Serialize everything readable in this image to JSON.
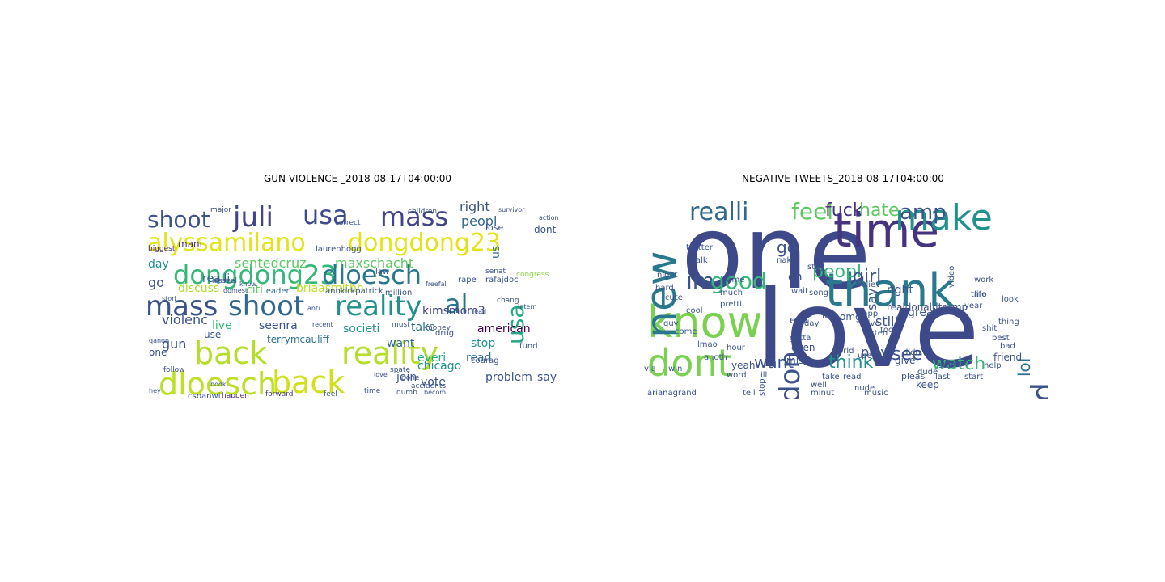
{
  "panels": [
    {
      "title": "GUN VIOLENCE _2018-08-17T04:00:00",
      "words": [
        {
          "text": "alyssamilano",
          "color": "#e2e418"
        },
        {
          "text": "dongdong23",
          "color": "#e2e418"
        },
        {
          "text": "dongdong23",
          "color": "#35b779"
        },
        {
          "text": "dloesch",
          "color": "#2a788e"
        },
        {
          "text": "mass",
          "color": "#3b528b"
        },
        {
          "text": "shoot",
          "color": "#31688e"
        },
        {
          "text": "reality",
          "color": "#21918c"
        },
        {
          "text": "al",
          "color": "#2c728e"
        },
        {
          "text": "usa",
          "color": "#22a884"
        },
        {
          "text": "back",
          "color": "#b5de2b"
        },
        {
          "text": "reality",
          "color": "#b5de2b"
        },
        {
          "text": "dloesch",
          "color": "#bddf26"
        },
        {
          "text": "back",
          "color": "#d0e11c"
        },
        {
          "text": "shoot",
          "color": "#3b528b"
        },
        {
          "text": "juli",
          "color": "#414487"
        },
        {
          "text": "usa",
          "color": "#3e4a89"
        },
        {
          "text": "mass",
          "color": "#414487"
        },
        {
          "text": "sentedcruz",
          "color": "#5ec962"
        },
        {
          "text": "maxschacht",
          "color": "#5ec962"
        },
        {
          "text": "right",
          "color": "#3b528b"
        },
        {
          "text": "peopl",
          "color": "#31688e"
        },
        {
          "text": "us",
          "color": "#2c728e"
        },
        {
          "text": "dont",
          "color": "#3b528b"
        },
        {
          "text": "mani",
          "color": "#472d7b"
        },
        {
          "text": "biggest",
          "color": "#482878"
        },
        {
          "text": "day",
          "color": "#21918c"
        },
        {
          "text": "go",
          "color": "#3b528b"
        },
        {
          "text": "realli",
          "color": "#31688e"
        },
        {
          "text": "discuss",
          "color": "#addc30"
        },
        {
          "text": "citi",
          "color": "#5ec962"
        },
        {
          "text": "briaasmithh",
          "color": "#bddf26"
        },
        {
          "text": "kimsmom3",
          "color": "#414487"
        },
        {
          "text": "violenc",
          "color": "#3b528b"
        },
        {
          "text": "live",
          "color": "#35b779"
        },
        {
          "text": "seenra",
          "color": "#3b528b"
        },
        {
          "text": "societi",
          "color": "#21918c"
        },
        {
          "text": "take",
          "color": "#2c728e"
        },
        {
          "text": "american",
          "color": "#440154"
        },
        {
          "text": "gun",
          "color": "#3b528b"
        },
        {
          "text": "use",
          "color": "#3b528b"
        },
        {
          "text": "terrymcauliff",
          "color": "#2c728e"
        },
        {
          "text": "want",
          "color": "#31688e"
        },
        {
          "text": "stop",
          "color": "#21918c"
        },
        {
          "text": "everi",
          "color": "#22a884"
        },
        {
          "text": "read",
          "color": "#31688e"
        },
        {
          "text": "chicago",
          "color": "#21918c"
        },
        {
          "text": "one",
          "color": "#3b528b"
        },
        {
          "text": "join",
          "color": "#3b528b"
        },
        {
          "text": "vote",
          "color": "#3b528b"
        },
        {
          "text": "problem",
          "color": "#3b528b"
        },
        {
          "text": "say",
          "color": "#3b528b"
        },
        {
          "text": "cspanwj",
          "color": "#3b528b"
        },
        {
          "text": "happen",
          "color": "#482878"
        },
        {
          "text": "forward",
          "color": "#443983"
        },
        {
          "text": "feel",
          "color": "#3b528b"
        },
        {
          "text": "lose",
          "color": "#3b528b"
        },
        {
          "text": "leader",
          "color": "#31688e"
        },
        {
          "text": "annkirkpatrick",
          "color": "#3b528b"
        },
        {
          "text": "million",
          "color": "#3b528b"
        },
        {
          "text": "laurenhogg",
          "color": "#3b528b"
        },
        {
          "text": "law",
          "color": "#3b528b"
        },
        {
          "text": "rape",
          "color": "#3b528b"
        },
        {
          "text": "rafajdoc",
          "color": "#3b528b"
        },
        {
          "text": "correct",
          "color": "#3b528b"
        },
        {
          "text": "major",
          "color": "#3b528b"
        },
        {
          "text": "congress",
          "color": "#8fd744"
        },
        {
          "text": "courag",
          "color": "#3b528b"
        },
        {
          "text": "chang",
          "color": "#3b528b"
        },
        {
          "text": "qanon",
          "color": "#3b528b"
        },
        {
          "text": "book",
          "color": "#3b528b"
        },
        {
          "text": "drug",
          "color": "#3b528b"
        },
        {
          "text": "fund",
          "color": "#3b528b"
        },
        {
          "text": "money",
          "color": "#3b528b"
        },
        {
          "text": "done",
          "color": "#3b528b"
        },
        {
          "text": "spate",
          "color": "#3b528b"
        },
        {
          "text": "dumb",
          "color": "#3b528b"
        },
        {
          "text": "must",
          "color": "#3b528b"
        },
        {
          "text": "slaughter",
          "color": "#8fd744"
        },
        {
          "text": "children",
          "color": "#3b528b"
        },
        {
          "text": "stori",
          "color": "#3b528b"
        },
        {
          "text": "less",
          "color": "#3b528b"
        },
        {
          "text": "real",
          "color": "#3b528b"
        },
        {
          "text": "senat",
          "color": "#3b528b"
        },
        {
          "text": "recent",
          "color": "#3b528b"
        },
        {
          "text": "anti",
          "color": "#3b528b"
        },
        {
          "text": "accidents",
          "color": "#3b528b"
        },
        {
          "text": "love",
          "color": "#3b528b"
        },
        {
          "text": "time",
          "color": "#3b528b"
        },
        {
          "text": "addict",
          "color": "#3b528b"
        },
        {
          "text": "becom",
          "color": "#3b528b"
        },
        {
          "text": "hey",
          "color": "#3b528b"
        },
        {
          "text": "follow",
          "color": "#3b528b"
        },
        {
          "text": "freefal",
          "color": "#3b528b"
        },
        {
          "text": "lead",
          "color": "#3b528b"
        },
        {
          "text": "survivor",
          "color": "#3b528b"
        },
        {
          "text": "action",
          "color": "#3b528b"
        },
        {
          "text": "know",
          "color": "#3b528b"
        },
        {
          "text": "domest",
          "color": "#3b528b"
        },
        {
          "text": "intern",
          "color": "#3b528b"
        },
        {
          "text": "survivor",
          "color": "#3b528b"
        }
      ]
    },
    {
      "title": "NEGATIVE TWEETS_2018-08-17T04:00:00",
      "words": [
        {
          "text": "one",
          "color": "#3e4989"
        },
        {
          "text": "love",
          "color": "#3e4989"
        },
        {
          "text": "time",
          "color": "#46337f"
        },
        {
          "text": "thank",
          "color": "#2a788e"
        },
        {
          "text": "know",
          "color": "#7ad151"
        },
        {
          "text": "dont",
          "color": "#7ad151"
        },
        {
          "text": "new",
          "color": "#2a788e"
        },
        {
          "text": "make",
          "color": "#21918c"
        },
        {
          "text": "realli",
          "color": "#31688e"
        },
        {
          "text": "feel",
          "color": "#5ec962"
        },
        {
          "text": "fuck",
          "color": "#46337f"
        },
        {
          "text": "hate",
          "color": "#5ec962"
        },
        {
          "text": "amp",
          "color": "#3b528b"
        },
        {
          "text": "need",
          "color": "#3b528b"
        },
        {
          "text": "im",
          "color": "#3b528b"
        },
        {
          "text": "good",
          "color": "#35b779"
        },
        {
          "text": "don",
          "color": "#3b528b"
        },
        {
          "text": "peopl",
          "color": "#35b779"
        },
        {
          "text": "girl",
          "color": "#3b528b"
        },
        {
          "text": "lol",
          "color": "#2c728e"
        },
        {
          "text": "watch",
          "color": "#35b779"
        },
        {
          "text": "see",
          "color": "#3b528b"
        },
        {
          "text": "think",
          "color": "#21918c"
        },
        {
          "text": "want",
          "color": "#3b528b"
        },
        {
          "text": "go",
          "color": "#3b528b"
        },
        {
          "text": "say",
          "color": "#3b528b"
        },
        {
          "text": "oh",
          "color": "#3b528b"
        },
        {
          "text": "play",
          "color": "#3b528b"
        },
        {
          "text": "still",
          "color": "#3b528b"
        },
        {
          "text": "right",
          "color": "#3b528b"
        },
        {
          "text": "look",
          "color": "#3b528b"
        },
        {
          "text": "work",
          "color": "#3b528b"
        },
        {
          "text": "game",
          "color": "#3b528b"
        },
        {
          "text": "much",
          "color": "#3b528b"
        },
        {
          "text": "pretti",
          "color": "#3b528b"
        },
        {
          "text": "friend",
          "color": "#3b528b"
        },
        {
          "text": "arianagrand",
          "color": "#3b528b"
        },
        {
          "text": "stop",
          "color": "#3b528b"
        },
        {
          "text": "yeah",
          "color": "#3b528b"
        },
        {
          "text": "miss",
          "color": "#3b528b"
        },
        {
          "text": "give",
          "color": "#3b528b"
        },
        {
          "text": "keep",
          "color": "#3b528b"
        },
        {
          "text": "pleas",
          "color": "#3b528b"
        },
        {
          "text": "believ",
          "color": "#3b528b"
        },
        {
          "text": "realdonaldtrump",
          "color": "#3b528b"
        },
        {
          "text": "happi",
          "color": "#3b528b"
        },
        {
          "text": "live",
          "color": "#3b528b"
        },
        {
          "text": "listen",
          "color": "#3b528b"
        },
        {
          "text": "free",
          "color": "#3b528b"
        },
        {
          "text": "end",
          "color": "#3b528b"
        },
        {
          "text": "even",
          "color": "#3b528b"
        },
        {
          "text": "omg",
          "color": "#3b528b"
        },
        {
          "text": "great",
          "color": "#3b528b"
        },
        {
          "text": "video",
          "color": "#3b528b"
        },
        {
          "text": "day",
          "color": "#3b528b"
        },
        {
          "text": "gotta",
          "color": "#3b528b"
        },
        {
          "text": "today",
          "color": "#3b528b"
        },
        {
          "text": "world",
          "color": "#3b528b"
        },
        {
          "text": "use",
          "color": "#3b528b"
        },
        {
          "text": "song",
          "color": "#3b528b"
        },
        {
          "text": "back",
          "color": "#3b528b"
        },
        {
          "text": "stan",
          "color": "#3b528b"
        },
        {
          "text": "bad",
          "color": "#3b528b"
        },
        {
          "text": "help",
          "color": "#3b528b"
        },
        {
          "text": "last",
          "color": "#3b528b"
        },
        {
          "text": "start",
          "color": "#3b528b"
        },
        {
          "text": "life",
          "color": "#3b528b"
        },
        {
          "text": "thing",
          "color": "#3b528b"
        },
        {
          "text": "best",
          "color": "#3b528b"
        },
        {
          "text": "tmo",
          "color": "#3b528b"
        },
        {
          "text": "year",
          "color": "#3b528b"
        },
        {
          "text": "shit",
          "color": "#3b528b"
        },
        {
          "text": "night",
          "color": "#3b528b"
        },
        {
          "text": "hard",
          "color": "#3b528b"
        },
        {
          "text": "cute",
          "color": "#3b528b"
        },
        {
          "text": "cool",
          "color": "#3b528b"
        },
        {
          "text": "guy",
          "color": "#3b528b"
        },
        {
          "text": "come",
          "color": "#3b528b"
        },
        {
          "text": "lmao",
          "color": "#3b528b"
        },
        {
          "text": "anoth",
          "color": "#3b528b"
        },
        {
          "text": "hour",
          "color": "#3b528b"
        },
        {
          "text": "word",
          "color": "#3b528b"
        },
        {
          "text": "ill",
          "color": "#3b528b"
        },
        {
          "text": "via",
          "color": "#3b528b"
        },
        {
          "text": "win",
          "color": "#3b528b"
        },
        {
          "text": "tell",
          "color": "#3b528b"
        },
        {
          "text": "well",
          "color": "#3b528b"
        },
        {
          "text": "nake",
          "color": "#3b528b"
        },
        {
          "text": "twitter",
          "color": "#3b528b"
        },
        {
          "text": "talk",
          "color": "#3b528b"
        },
        {
          "text": "stay",
          "color": "#3b528b"
        },
        {
          "text": "wait",
          "color": "#3b528b"
        },
        {
          "text": "take",
          "color": "#3b528b"
        },
        {
          "text": "read",
          "color": "#3b528b"
        },
        {
          "text": "nude",
          "color": "#3b528b"
        },
        {
          "text": "didn",
          "color": "#3b528b"
        },
        {
          "text": "dude",
          "color": "#3b528b"
        },
        {
          "text": "music",
          "color": "#3b528b"
        },
        {
          "text": "minut",
          "color": "#3b528b"
        },
        {
          "text": "put",
          "color": "#3b528b"
        },
        {
          "text": "alway",
          "color": "#3b528b"
        }
      ]
    }
  ]
}
